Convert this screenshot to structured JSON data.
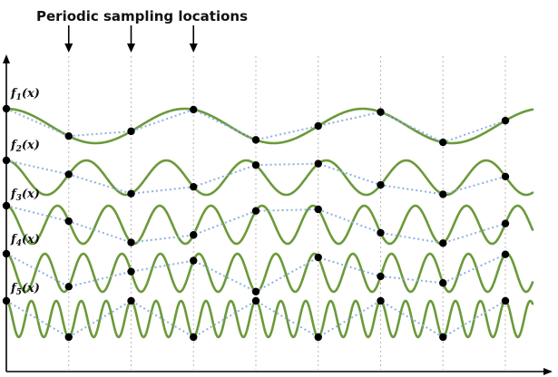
{
  "title": "Periodic sampling locations",
  "functions": [
    {
      "label": "f",
      "sub": "1",
      "arg": "(x)"
    },
    {
      "label": "f",
      "sub": "2",
      "arg": "(x)"
    },
    {
      "label": "f",
      "sub": "3",
      "arg": "(x)"
    },
    {
      "label": "f",
      "sub": "4",
      "arg": "(x)"
    },
    {
      "label": "f",
      "sub": "5",
      "arg": "(x)"
    }
  ],
  "colors": {
    "curve": "#6b9a3a",
    "sample_line": "#8fb0e0",
    "grid": "#b8b8b8",
    "dot": "#000000",
    "axis": "#000000"
  },
  "arrow_count": 3,
  "sample_count": 9
}
